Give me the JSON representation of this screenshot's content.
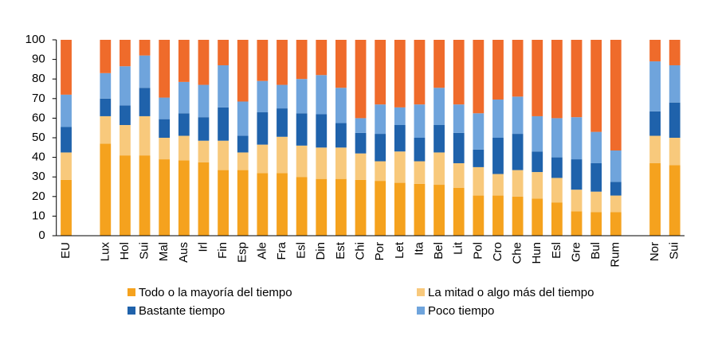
{
  "chart_data": {
    "type": "stacked_bar",
    "categories": [
      "EU",
      null,
      "Lux",
      "Hol",
      "Sui",
      "Mal",
      "Aus",
      "Irl",
      "Fin",
      "Esp",
      "Ale",
      "Fra",
      "Esl",
      "Din",
      "Est",
      "Chi",
      "Por",
      "Let",
      "Ita",
      "Bel",
      "Lit",
      "Pol",
      "Cro",
      "Che",
      "Hun",
      "Esl",
      "Gre",
      "Bul",
      "Rum",
      null,
      "Nor",
      "Sui"
    ],
    "series": [
      {
        "name": "Todo o la mayoría del tiempo",
        "color": "#f5a21e",
        "values": [
          28.5,
          null,
          47,
          41,
          41,
          39,
          38.5,
          37.5,
          33.5,
          33.5,
          32,
          32,
          30,
          29,
          29,
          28.5,
          28,
          27,
          26.5,
          26,
          24.5,
          20.5,
          20.5,
          20,
          19,
          17,
          12.5,
          12,
          12,
          null,
          37,
          36
        ]
      },
      {
        "name": "La mitad o algo más del tiempo",
        "color": "#f8c97c",
        "values": [
          14,
          null,
          14,
          15.5,
          20,
          11,
          12.5,
          11,
          15,
          9,
          14.5,
          18.5,
          16,
          16,
          16,
          13.5,
          10,
          16,
          11.5,
          16.5,
          12.5,
          14.5,
          11,
          13.5,
          13.5,
          12.5,
          11,
          10.5,
          8.5,
          null,
          14,
          14
        ]
      },
      {
        "name": "Bastante tiempo",
        "color": "#1f62ab",
        "values": [
          13,
          null,
          9,
          10,
          14.5,
          9.5,
          11.5,
          12,
          17,
          8.5,
          16.5,
          14.5,
          16.5,
          17,
          12.5,
          10.5,
          14,
          13.5,
          12,
          14,
          15.5,
          9,
          18.5,
          18.5,
          10.5,
          10.5,
          15.5,
          14.5,
          7,
          null,
          12.5,
          18
        ]
      },
      {
        "name": "Poco tiempo",
        "color": "#6fa4dc",
        "values": [
          16.5,
          null,
          13,
          20,
          16.5,
          11,
          16,
          16.5,
          21.5,
          17.5,
          16,
          12,
          17.5,
          20,
          18,
          7.5,
          15,
          9,
          17,
          19,
          14.5,
          18.5,
          19.5,
          19,
          18,
          20,
          21.5,
          16,
          16,
          null,
          25.5,
          19
        ]
      },
      {
        "color": "#ef6b2b",
        "values": [
          28,
          null,
          17,
          13.5,
          8,
          29.5,
          21.5,
          23,
          13,
          31.5,
          21,
          23,
          20,
          18,
          24.5,
          40,
          33,
          34.5,
          33,
          24.5,
          33,
          37.5,
          30.5,
          29,
          39,
          40,
          39.5,
          47,
          56.5,
          null,
          11,
          13
        ]
      }
    ],
    "ylim": [
      0,
      100
    ],
    "yticks": [
      0,
      10,
      20,
      30,
      40,
      50,
      60,
      70,
      80,
      90,
      100
    ]
  }
}
